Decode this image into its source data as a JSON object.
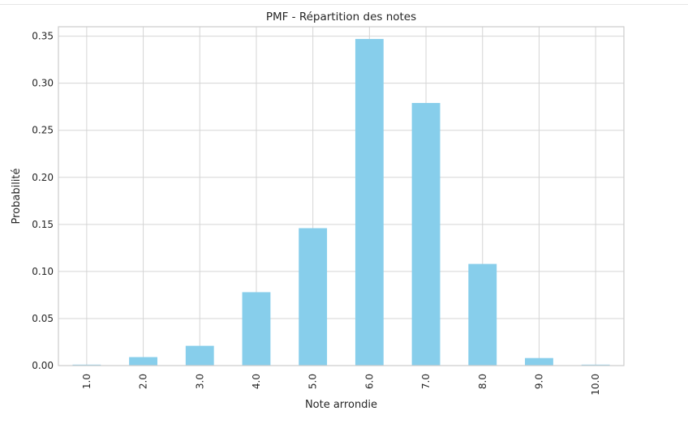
{
  "chart_data": {
    "type": "bar",
    "title": "PMF - Répartition des notes",
    "xlabel": "Note arrondie",
    "ylabel": "Probabilité",
    "categories": [
      "1.0",
      "2.0",
      "3.0",
      "4.0",
      "5.0",
      "6.0",
      "7.0",
      "8.0",
      "9.0",
      "10.0"
    ],
    "values": [
      0.001,
      0.009,
      0.021,
      0.078,
      0.146,
      0.347,
      0.279,
      0.108,
      0.008,
      0.001
    ],
    "ylim": [
      0,
      0.36
    ],
    "yticks": [
      0.0,
      0.05,
      0.1,
      0.15,
      0.2,
      0.25,
      0.3,
      0.35
    ],
    "ytick_labels": [
      "0.00",
      "0.05",
      "0.10",
      "0.15",
      "0.20",
      "0.25",
      "0.30",
      "0.35"
    ],
    "grid": true,
    "bar_color": "#87ceeb",
    "grid_color": "#d5d5d5",
    "frame_color": "#cccccc"
  }
}
